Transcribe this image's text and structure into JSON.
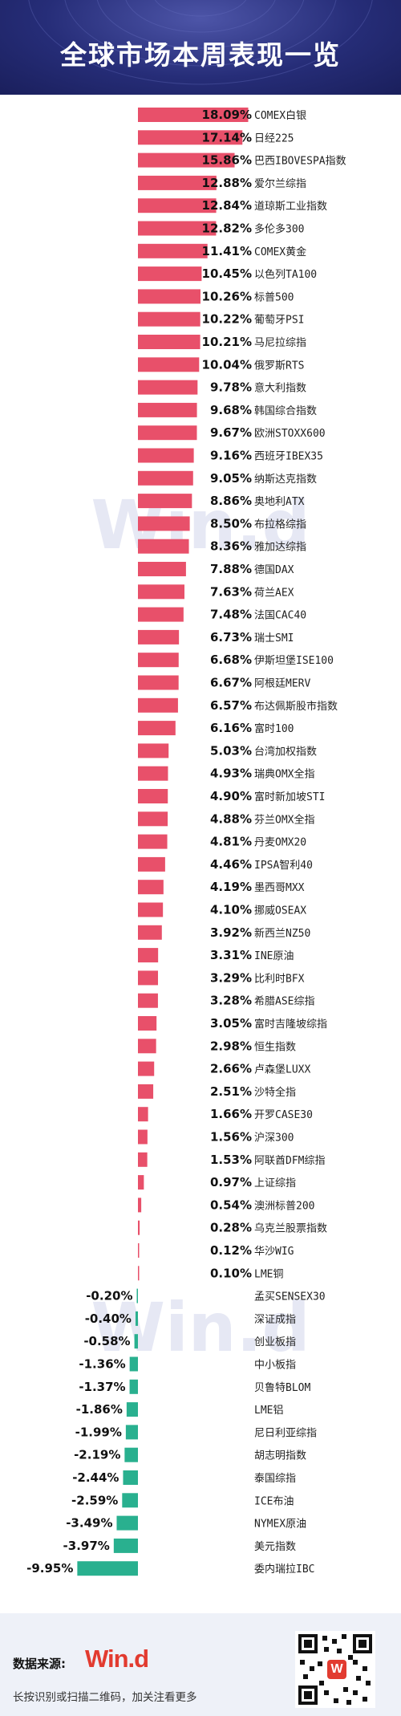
{
  "header": {
    "title": "全球市场本周表现一览"
  },
  "chart_data": {
    "type": "bar",
    "orientation": "horizontal",
    "title": "全球市场本周表现一览",
    "colors": {
      "positive": "#e8506a",
      "negative": "#29b08f"
    },
    "categories": [
      "COMEX白银",
      "日经225",
      "巴西IBOVESPA指数",
      "爱尔兰综指",
      "道琼斯工业指数",
      "多伦多300",
      "COMEX黄金",
      "以色列TA100",
      "标普500",
      "葡萄牙PSI",
      "马尼拉综指",
      "俄罗斯RTS",
      "意大利指数",
      "韩国综合指数",
      "欧洲STOXX600",
      "西班牙IBEX35",
      "纳斯达克指数",
      "奥地利ATX",
      "布拉格综指",
      "雅加达综指",
      "德国DAX",
      "荷兰AEX",
      "法国CAC40",
      "瑞士SMI",
      "伊斯坦堡ISE100",
      "阿根廷MERV",
      "布达佩斯股市指数",
      "富时100",
      "台湾加权指数",
      "瑞典OMX全指",
      "富时新加坡STI",
      "芬兰OMX全指",
      "丹麦OMX20",
      "IPSA智利40",
      "墨西哥MXX",
      "挪威OSEAX",
      "新西兰NZ50",
      "INE原油",
      "比利时BFX",
      "希腊ASE综指",
      "富时吉隆坡综指",
      "恒生指数",
      "卢森堡LUXX",
      "沙特全指",
      "开罗CASE30",
      "沪深300",
      "阿联酋DFM综指",
      "上证综指",
      "澳洲标普200",
      "乌克兰股票指数",
      "华沙WIG",
      "LME铜",
      "孟买SENSEX30",
      "深证成指",
      "创业板指",
      "中小板指",
      "贝鲁特BLOM",
      "LME铝",
      "尼日利亚综指",
      "胡志明指数",
      "泰国综指",
      "ICE布油",
      "NYMEX原油",
      "美元指数",
      "委内瑞拉IBC"
    ],
    "values": [
      18.09,
      17.14,
      15.86,
      12.88,
      12.84,
      12.82,
      11.41,
      10.45,
      10.26,
      10.22,
      10.21,
      10.04,
      9.78,
      9.68,
      9.67,
      9.16,
      9.05,
      8.86,
      8.5,
      8.36,
      7.88,
      7.63,
      7.48,
      6.73,
      6.68,
      6.67,
      6.57,
      6.16,
      5.03,
      4.93,
      4.9,
      4.88,
      4.81,
      4.46,
      4.19,
      4.1,
      3.92,
      3.31,
      3.29,
      3.28,
      3.05,
      2.98,
      2.66,
      2.51,
      1.66,
      1.56,
      1.53,
      0.97,
      0.54,
      0.28,
      0.12,
      0.1,
      -0.2,
      -0.4,
      -0.58,
      -1.36,
      -1.37,
      -1.86,
      -1.99,
      -2.19,
      -2.44,
      -2.59,
      -3.49,
      -3.97,
      -9.95
    ],
    "value_labels": [
      "18.09%",
      "17.14%",
      "15.86%",
      "12.88%",
      "12.84%",
      "12.82%",
      "11.41%",
      "10.45%",
      "10.26%",
      "10.22%",
      "10.21%",
      "10.04%",
      "9.78%",
      "9.68%",
      "9.67%",
      "9.16%",
      "9.05%",
      "8.86%",
      "8.50%",
      "8.36%",
      "7.88%",
      "7.63%",
      "7.48%",
      "6.73%",
      "6.68%",
      "6.67%",
      "6.57%",
      "6.16%",
      "5.03%",
      "4.93%",
      "4.90%",
      "4.88%",
      "4.81%",
      "4.46%",
      "4.19%",
      "4.10%",
      "3.92%",
      "3.31%",
      "3.29%",
      "3.28%",
      "3.05%",
      "2.98%",
      "2.66%",
      "2.51%",
      "1.66%",
      "1.56%",
      "1.53%",
      "0.97%",
      "0.54%",
      "0.28%",
      "0.12%",
      "0.10%",
      "-0.20%",
      "-0.40%",
      "-0.58%",
      "-1.36%",
      "-1.37%",
      "-1.86%",
      "-1.99%",
      "-2.19%",
      "-2.44%",
      "-2.59%",
      "-3.49%",
      "-3.97%",
      "-9.95%"
    ]
  },
  "watermark": "Win.d",
  "footer": {
    "source_label": "数据来源:",
    "logo_text": "Win.d",
    "hint": "长按识别或扫描二维码，加关注看更多",
    "qr_badge": "W"
  }
}
